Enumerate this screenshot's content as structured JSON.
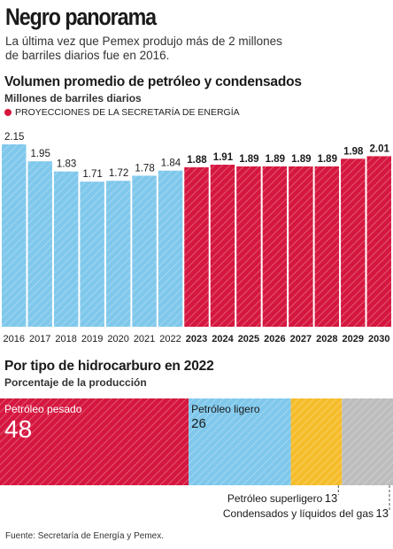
{
  "header": {
    "title": "Negro panorama",
    "subtitle": "La última vez que Pemex produjo más de 2 millones de barriles diarios fue en 2016."
  },
  "section1": {
    "title": "Volumen promedio de petróleo y condensados",
    "subtitle": "Millones de barriles diarios",
    "legend_label": "PROYECCIONES DE LA SECRETARÍA DE ENERGÍA"
  },
  "section2": {
    "title": "Por tipo de hidrocarburo en 2022",
    "subtitle": "Porcentaje de la producción"
  },
  "source": "Fuente: Secretaría de Energía y Pemex.",
  "colors": {
    "historical": "#7fc8ec",
    "projection": "#d5173f",
    "light_oil": "#7fc8ec",
    "superlight": "#f6bd2b",
    "condensates": "#bdbdbd"
  },
  "chart_data": [
    {
      "type": "bar",
      "categories": [
        "2016",
        "2017",
        "2018",
        "2019",
        "2020",
        "2021",
        "2022",
        "2023",
        "2024",
        "2025",
        "2026",
        "2027",
        "2028",
        "2029",
        "2030"
      ],
      "values": [
        2.15,
        1.95,
        1.83,
        1.71,
        1.72,
        1.78,
        1.84,
        1.88,
        1.91,
        1.89,
        1.89,
        1.89,
        1.89,
        1.98,
        2.01
      ],
      "labels": [
        "2.15",
        "1.95",
        "1.83",
        "1.71",
        "1.72",
        "1.78",
        "1.84",
        "1.88",
        "1.91",
        "1.89",
        "1.89",
        "1.89",
        "1.89",
        "1.98",
        "2.01"
      ],
      "projection_start_index": 7,
      "ylim": [
        0,
        2.15
      ]
    },
    {
      "type": "bar",
      "orientation": "horizontal-stacked",
      "segments": [
        {
          "name": "Petróleo pesado",
          "value": 48,
          "label": "48",
          "color": "#d5173f"
        },
        {
          "name": "Petróleo ligero",
          "value": 26,
          "label": "26",
          "color": "#7fc8ec"
        },
        {
          "name": "Petróleo superligero",
          "value": 13,
          "label": "13",
          "color": "#f6bd2b"
        },
        {
          "name": "Condensados y líquidos del gas",
          "value": 13,
          "label": "13",
          "color": "#bdbdbd"
        }
      ]
    }
  ]
}
